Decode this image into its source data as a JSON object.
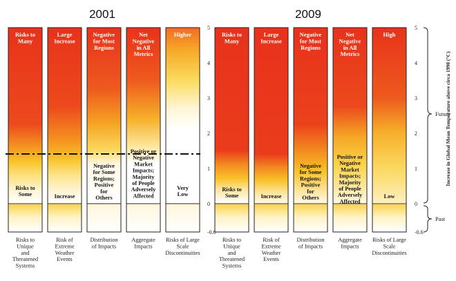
{
  "panels": [
    {
      "title": "2001",
      "columns": [
        {
          "top": "Risks to\nMany",
          "bottom": "Risks to\nSome",
          "category": "Risks to\nUnique\nand\nThreatened\nSystems"
        },
        {
          "top": "Large\nIncrease",
          "bottom": "Increase",
          "category": "Risk of\nExtreme\nWeather\nEvents"
        },
        {
          "top": "Negative\nfor Most\nRegions",
          "bottom": "Negative\nfor Some\nRegions;\nPositive\nfor\nOthers",
          "category": "Distribution\nof Impacts"
        },
        {
          "top": "Net\nNegative\nin All\nMetrics",
          "bottom": "Positive or\nNegative\nMarket\nImpacts;\nMajority\nof People\nAdversely\nAffected",
          "category": "Aggregate\nImpacts"
        },
        {
          "top": "Higher",
          "bottom": "Very\nLow",
          "category": "Risks of Large\nScale\nDiscontinuities"
        }
      ]
    },
    {
      "title": "2009",
      "columns": [
        {
          "top": "Risks to\nMany",
          "bottom": "Risks to\nSome",
          "category": "Risks to\nUnique\nand\nThreatened\nSystems"
        },
        {
          "top": "Large\nIncrease",
          "bottom": "Increase",
          "category": "Risk of\nExtreme\nWeather\nEvents"
        },
        {
          "top": "Negative\nfor Most\nRegions",
          "bottom": "Negative\nfor Some\nRegions;\nPositive\nfor\nOthers",
          "category": "Distribution\nof Impacts"
        },
        {
          "top": "Net\nNegative\nin All\nMetrics",
          "bottom": "Positive or\nNegative\nMarket\nImpacts;\nMajority\nof People\nAdversely\nAffected",
          "category": "Aggregate\nImpacts"
        },
        {
          "top": "High",
          "bottom": "Low",
          "category": "Risks of Large\nScale\nDiscontinuities"
        }
      ]
    }
  ],
  "axis": {
    "ticks": [
      "5",
      "4",
      "3",
      "2",
      "1",
      "0",
      "-0.6"
    ],
    "label": "Increase in Global Mean Temperature above circa 1990 (°C)",
    "future_label": "Future",
    "past_label": "Past"
  }
}
